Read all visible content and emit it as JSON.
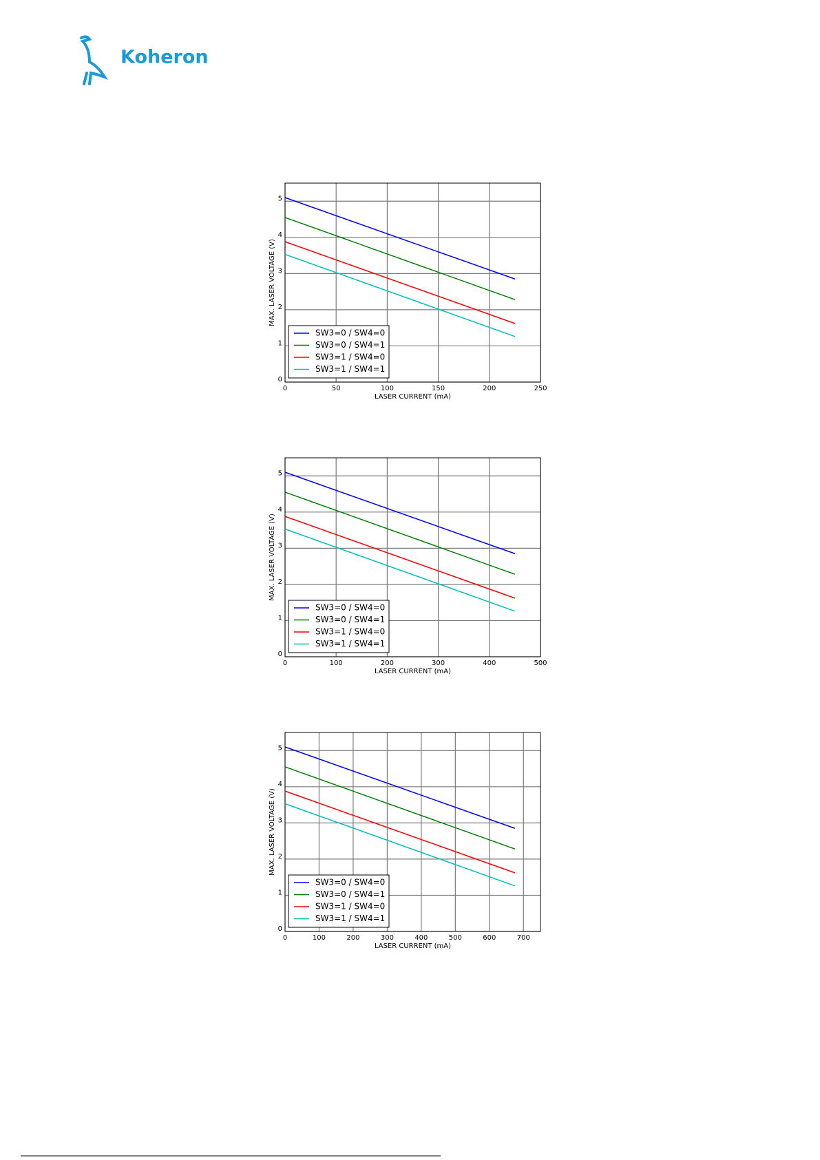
{
  "header": {
    "brand": "Koheron"
  },
  "chart_data": [
    {
      "type": "line",
      "xlabel": "LASER CURRENT (mA)",
      "ylabel": "MAX. LASER VOLTAGE (V)",
      "x": [
        0,
        225
      ],
      "xlim": [
        0,
        250
      ],
      "xticks": [
        0,
        50,
        100,
        150,
        200,
        250
      ],
      "ylim": [
        0,
        5.5
      ],
      "yticks": [
        0,
        1,
        2,
        3,
        4,
        5
      ],
      "grid": true,
      "legend": "lower left",
      "series": [
        {
          "name": "SW3=0 / SW4=0",
          "color": "#0000ff",
          "values": [
            5.1,
            2.85
          ]
        },
        {
          "name": "SW3=0 / SW4=1",
          "color": "#007f00",
          "values": [
            4.55,
            2.28
          ]
        },
        {
          "name": "SW3=1 / SW4=0",
          "color": "#ff0000",
          "values": [
            3.88,
            1.62
          ]
        },
        {
          "name": "SW3=1 / SW4=1",
          "color": "#00bfbf",
          "values": [
            3.53,
            1.26
          ]
        }
      ]
    },
    {
      "type": "line",
      "xlabel": "LASER CURRENT (mA)",
      "ylabel": "MAX. LASER VOLTAGE (V)",
      "x": [
        0,
        450
      ],
      "xlim": [
        0,
        500
      ],
      "xticks": [
        0,
        100,
        200,
        300,
        400,
        500
      ],
      "ylim": [
        0,
        5.5
      ],
      "yticks": [
        0,
        1,
        2,
        3,
        4,
        5
      ],
      "grid": true,
      "legend": "lower left",
      "series": [
        {
          "name": "SW3=0 / SW4=0",
          "color": "#0000ff",
          "values": [
            5.1,
            2.85
          ]
        },
        {
          "name": "SW3=0 / SW4=1",
          "color": "#007f00",
          "values": [
            4.55,
            2.28
          ]
        },
        {
          "name": "SW3=1 / SW4=0",
          "color": "#ff0000",
          "values": [
            3.88,
            1.62
          ]
        },
        {
          "name": "SW3=1 / SW4=1",
          "color": "#00bfbf",
          "values": [
            3.53,
            1.26
          ]
        }
      ]
    },
    {
      "type": "line",
      "xlabel": "LASER CURRENT (mA)",
      "ylabel": "MAX. LASER VOLTAGE (V)",
      "x": [
        0,
        675
      ],
      "xlim": [
        0,
        750
      ],
      "xticks": [
        0,
        100,
        200,
        300,
        400,
        500,
        600,
        700
      ],
      "ylim": [
        0,
        5.5
      ],
      "yticks": [
        0,
        1,
        2,
        3,
        4,
        5
      ],
      "grid": true,
      "legend": "lower left",
      "series": [
        {
          "name": "SW3=0 / SW4=0",
          "color": "#0000ff",
          "values": [
            5.1,
            2.85
          ]
        },
        {
          "name": "SW3=0 / SW4=1",
          "color": "#007f00",
          "values": [
            4.55,
            2.28
          ]
        },
        {
          "name": "SW3=1 / SW4=0",
          "color": "#ff0000",
          "values": [
            3.88,
            1.62
          ]
        },
        {
          "name": "SW3=1 / SW4=1",
          "color": "#00bfbf",
          "values": [
            3.53,
            1.26
          ]
        }
      ]
    }
  ]
}
